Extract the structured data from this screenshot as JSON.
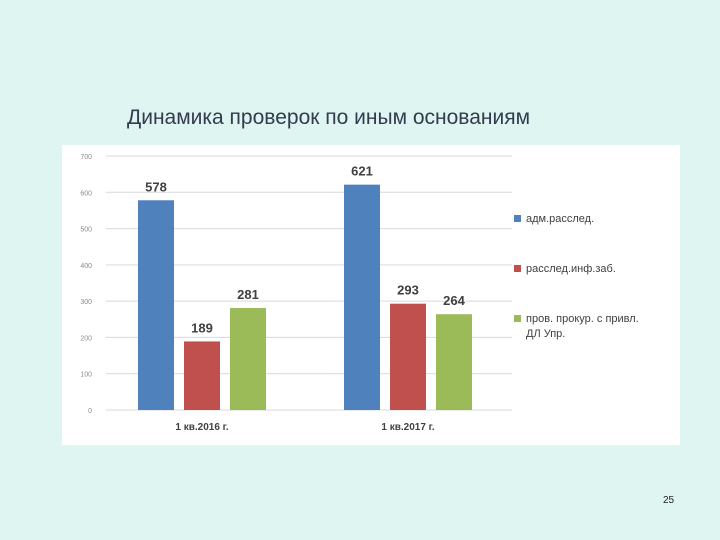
{
  "slide": {
    "title": "Динамика проверок по иным основаниям",
    "page_number": "25"
  },
  "colors": {
    "background": "#def5f1",
    "panel": "#ffffff",
    "grid": "#d9d9d9",
    "axis_text": "#8c8c8c",
    "label_text": "#404040"
  },
  "chart_data": {
    "type": "bar",
    "categories": [
      "1 кв.2016 г.",
      "1 кв.2017 г."
    ],
    "series": [
      {
        "name": "адм.расслед.",
        "values": [
          578,
          621
        ],
        "color": "#4f81bd"
      },
      {
        "name": "расслед.инф.заб.",
        "values": [
          189,
          293
        ],
        "color": "#c0504d"
      },
      {
        "name": "пров. прокур. с привл. ДЛ Упр.",
        "values": [
          281,
          264
        ],
        "color": "#9bbb59"
      }
    ],
    "ylim": [
      0,
      700
    ],
    "yticks": [
      0,
      100,
      200,
      300,
      400,
      500,
      600,
      700
    ],
    "grid": true,
    "legend": "right",
    "data_labels": true,
    "title": "",
    "xlabel": "",
    "ylabel": ""
  }
}
